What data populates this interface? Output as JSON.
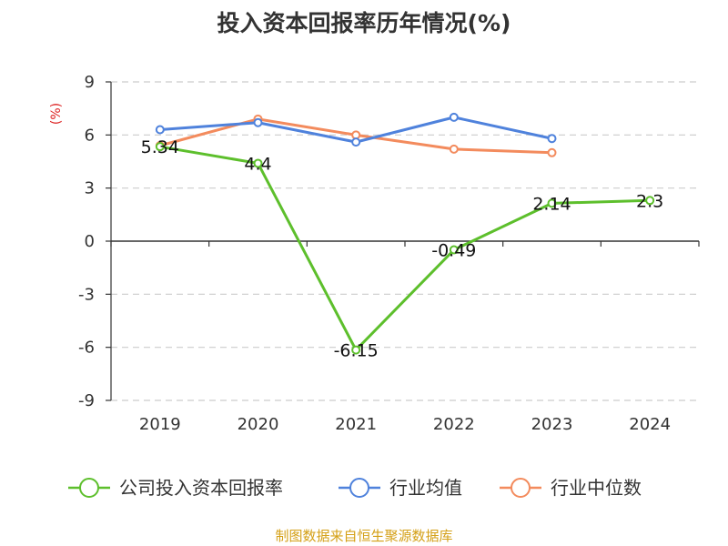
{
  "title": "投入资本回报率历年情况(%)",
  "source": "制图数据来自恒生聚源数据库",
  "chart_data": {
    "type": "line",
    "categories": [
      "2019",
      "2020",
      "2021",
      "2022",
      "2023",
      "2024"
    ],
    "y_unit": "(%)",
    "ylim": [
      -9,
      9
    ],
    "yticks": [
      9,
      6,
      3,
      0,
      -3,
      -6,
      -9
    ],
    "grid": true,
    "legend_position": "bottom",
    "series": [
      {
        "name": "公司投入资本回报率",
        "color": "#5dbf2c",
        "values": [
          5.34,
          4.4,
          -6.15,
          -0.49,
          2.14,
          2.3
        ],
        "labels": [
          "5.34",
          "4.4",
          "-6.15",
          "-0.49",
          "2.14",
          "2.3"
        ]
      },
      {
        "name": "行业均值",
        "color": "#4f82dc",
        "values": [
          6.3,
          6.7,
          5.6,
          7.0,
          5.8,
          null
        ]
      },
      {
        "name": "行业中位数",
        "color": "#f38b5d",
        "values": [
          5.4,
          6.9,
          6.0,
          5.2,
          5.0,
          null
        ]
      }
    ]
  }
}
